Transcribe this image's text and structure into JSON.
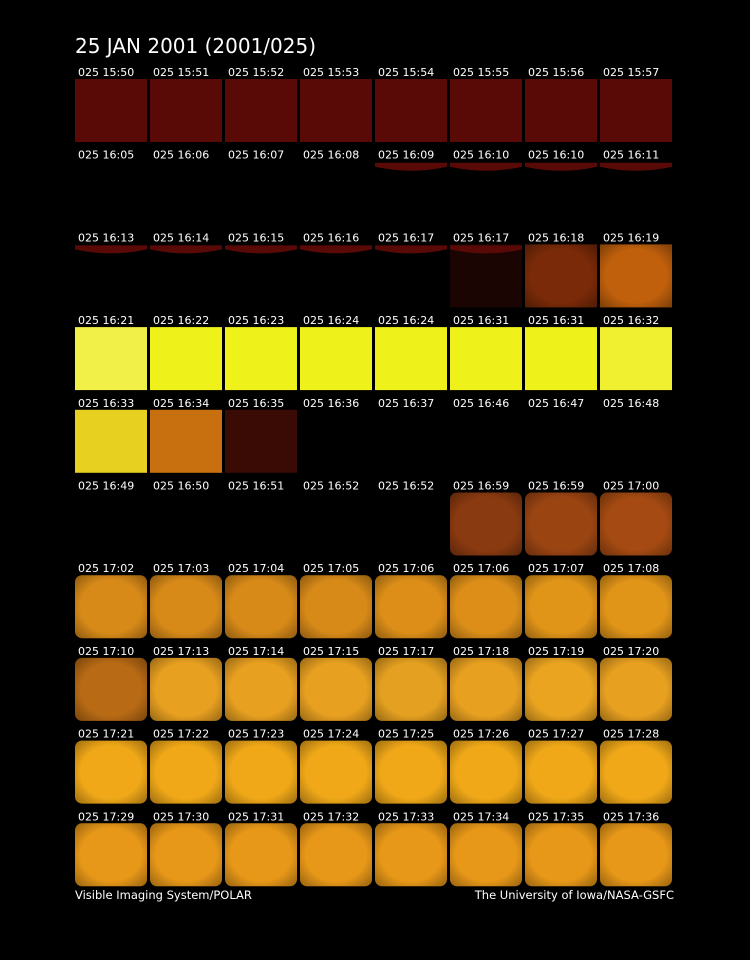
{
  "header": {
    "title": "25 JAN 2001  (2001/025)"
  },
  "frames": [
    [
      "025 15:50",
      "025 15:51",
      "025 15:52",
      "025 15:53",
      "025 15:54",
      "025 15:55",
      "025 15:56",
      "025 15:57"
    ],
    [
      "025 16:05",
      "025 16:06",
      "025 16:07",
      "025 16:08",
      "025 16:09",
      "025 16:10",
      "025 16:10",
      "025 16:11"
    ],
    [
      "025 16:13",
      "025 16:14",
      "025 16:15",
      "025 16:16",
      "025 16:17",
      "025 16:17",
      "025 16:18",
      "025 16:19"
    ],
    [
      "025 16:21",
      "025 16:22",
      "025 16:23",
      "025 16:24",
      "025 16:24",
      "025 16:31",
      "025 16:31",
      "025 16:32"
    ],
    [
      "025 16:33",
      "025 16:34",
      "025 16:35",
      "025 16:36",
      "025 16:37",
      "025 16:46",
      "025 16:47",
      "025 16:48"
    ],
    [
      "025 16:49",
      "025 16:50",
      "025 16:51",
      "025 16:52",
      "025 16:52",
      "025 16:59",
      "025 16:59",
      "025 17:00"
    ],
    [
      "025 17:02",
      "025 17:03",
      "025 17:04",
      "025 17:05",
      "025 17:06",
      "025 17:06",
      "025 17:07",
      "025 17:08"
    ],
    [
      "025 17:10",
      "025 17:13",
      "025 17:14",
      "025 17:15",
      "025 17:17",
      "025 17:18",
      "025 17:19",
      "025 17:20"
    ],
    [
      "025 17:21",
      "025 17:22",
      "025 17:23",
      "025 17:24",
      "025 17:25",
      "025 17:26",
      "025 17:27",
      "025 17:28"
    ],
    [
      "025 17:29",
      "025 17:30",
      "025 17:31",
      "025 17:32",
      "025 17:33",
      "025 17:34",
      "025 17:35",
      "025 17:36"
    ]
  ],
  "footer": {
    "left": "Visible Imaging System/POLAR",
    "right": "The University of Iowa/NASA-GSFC"
  }
}
